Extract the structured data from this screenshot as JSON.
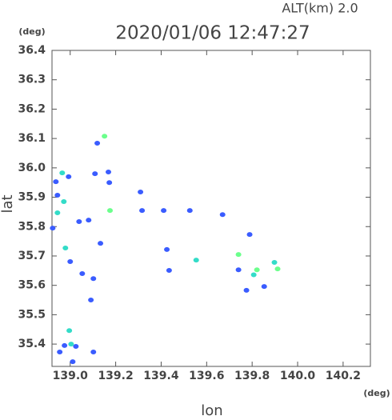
{
  "chart_data": {
    "type": "scatter",
    "title": "2020/01/06 12:47:27",
    "subtitle": "ALT(km) 2.0",
    "x_unit": "(deg)",
    "y_unit": "(deg)",
    "x_label": "lon",
    "y_label": "lat",
    "xlim": [
      138.92,
      140.32
    ],
    "ylim": [
      35.324,
      36.4
    ],
    "xticks": [
      {
        "value": 139,
        "label": "139.0"
      },
      139.2,
      139.4,
      139.6,
      139.8,
      {
        "value": 140,
        "label": "140.0"
      },
      140.2
    ],
    "yticks": [
      {
        "value": 35.4,
        "label": "35.4"
      },
      35.5,
      35.6,
      35.7,
      35.8,
      35.9,
      {
        "value": 36,
        "label": "36.0"
      },
      36.1,
      36.2,
      36.3,
      36.4
    ],
    "series": [
      {
        "color": "#3a5cff",
        "x": [
          139.119,
          138.993,
          138.937,
          139.109,
          139.168,
          139.172,
          139.309,
          138.944,
          139.039,
          139.081,
          139.316,
          139.411,
          139.526,
          139.67,
          138.923,
          139.133,
          139.425,
          139.0,
          139.789,
          139.053,
          139.102,
          139.435,
          139.74,
          139.775,
          139.091,
          138.975,
          139.025,
          138.954,
          139.102,
          139.011,
          139.853
        ],
        "y": [
          36.084,
          35.97,
          35.953,
          35.98,
          35.986,
          35.95,
          35.918,
          35.907,
          35.817,
          35.822,
          35.855,
          35.855,
          35.855,
          35.841,
          35.795,
          35.743,
          35.722,
          35.681,
          35.773,
          35.64,
          35.623,
          35.651,
          35.653,
          35.583,
          35.55,
          35.395,
          35.392,
          35.373,
          35.373,
          35.34,
          35.596
        ]
      },
      {
        "color": "#33dcc8",
        "x": [
          138.965,
          138.972,
          138.944,
          138.979,
          139.554,
          139.807,
          139.898,
          138.996,
          139.004
        ],
        "y": [
          35.983,
          35.885,
          35.847,
          35.727,
          35.686,
          35.636,
          35.678,
          35.446,
          35.4
        ]
      },
      {
        "color": "#6bff8c",
        "x": [
          139.151,
          139.175,
          139.74,
          139.821,
          139.912
        ],
        "y": [
          36.108,
          35.855,
          35.705,
          35.653,
          35.656
        ]
      }
    ]
  }
}
